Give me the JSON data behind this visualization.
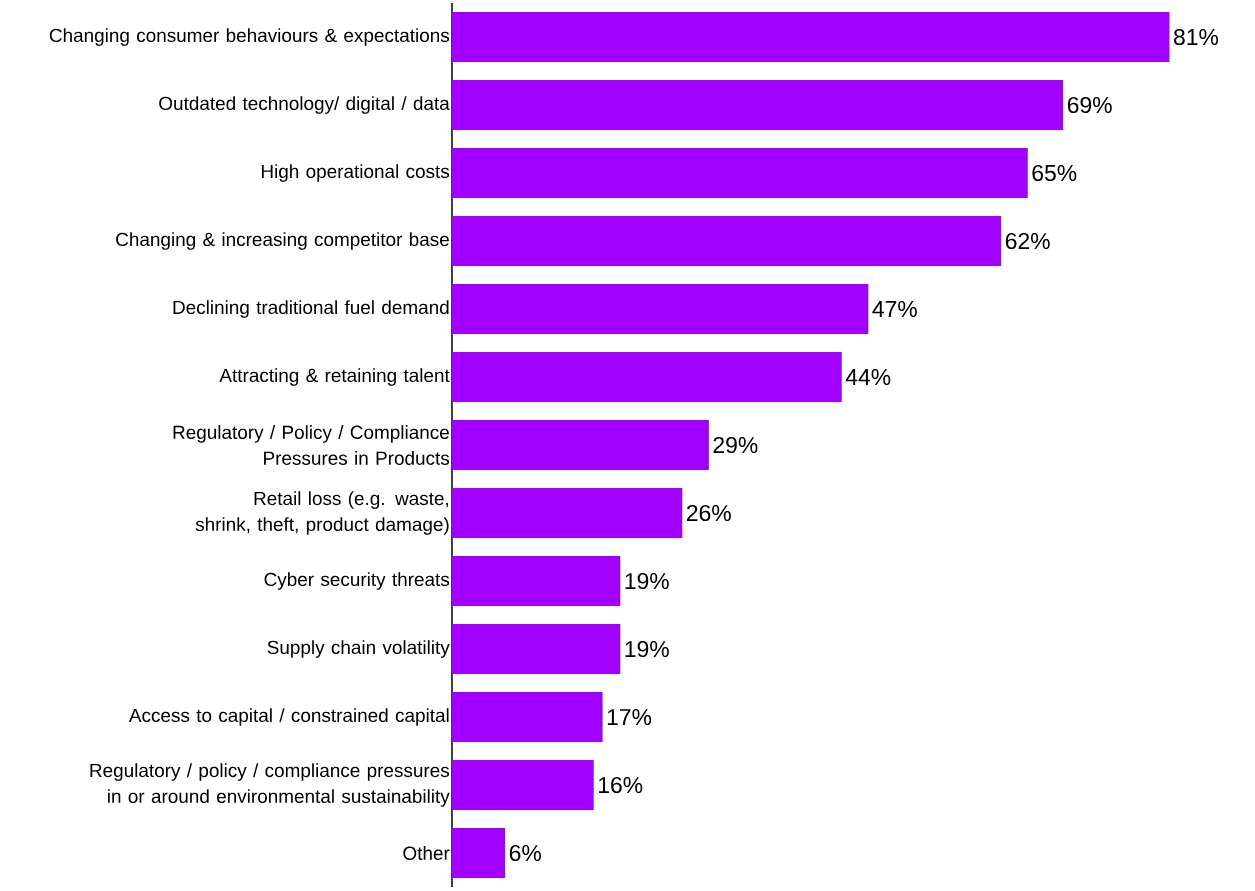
{
  "chart_data": {
    "type": "bar",
    "orientation": "horizontal",
    "color": "#a100ff",
    "categories": [
      "Changing consumer behaviours & expectations",
      "Outdated technology/ digital / data",
      "High operational costs",
      "Changing & increasing competitor base",
      "Declining traditional fuel demand",
      "Attracting & retaining talent",
      "Regulatory / Policy / Compliance Pressures in Products",
      "Retail loss (e.g. waste, shrink, theft, product damage)",
      "Cyber security threats",
      "Supply chain volatility",
      "Access to capital / constrained capital",
      "Regulatory / policy / compliance pressures in or around environmental sustainability",
      "Other"
    ],
    "values": [
      81,
      69,
      65,
      62,
      47,
      44,
      29,
      26,
      19,
      19,
      17,
      16,
      6
    ],
    "value_labels": [
      "81%",
      "69%",
      "65%",
      "62%",
      "47%",
      "44%",
      "29%",
      "26%",
      "19%",
      "19%",
      "17%",
      "16%",
      "6%"
    ]
  }
}
